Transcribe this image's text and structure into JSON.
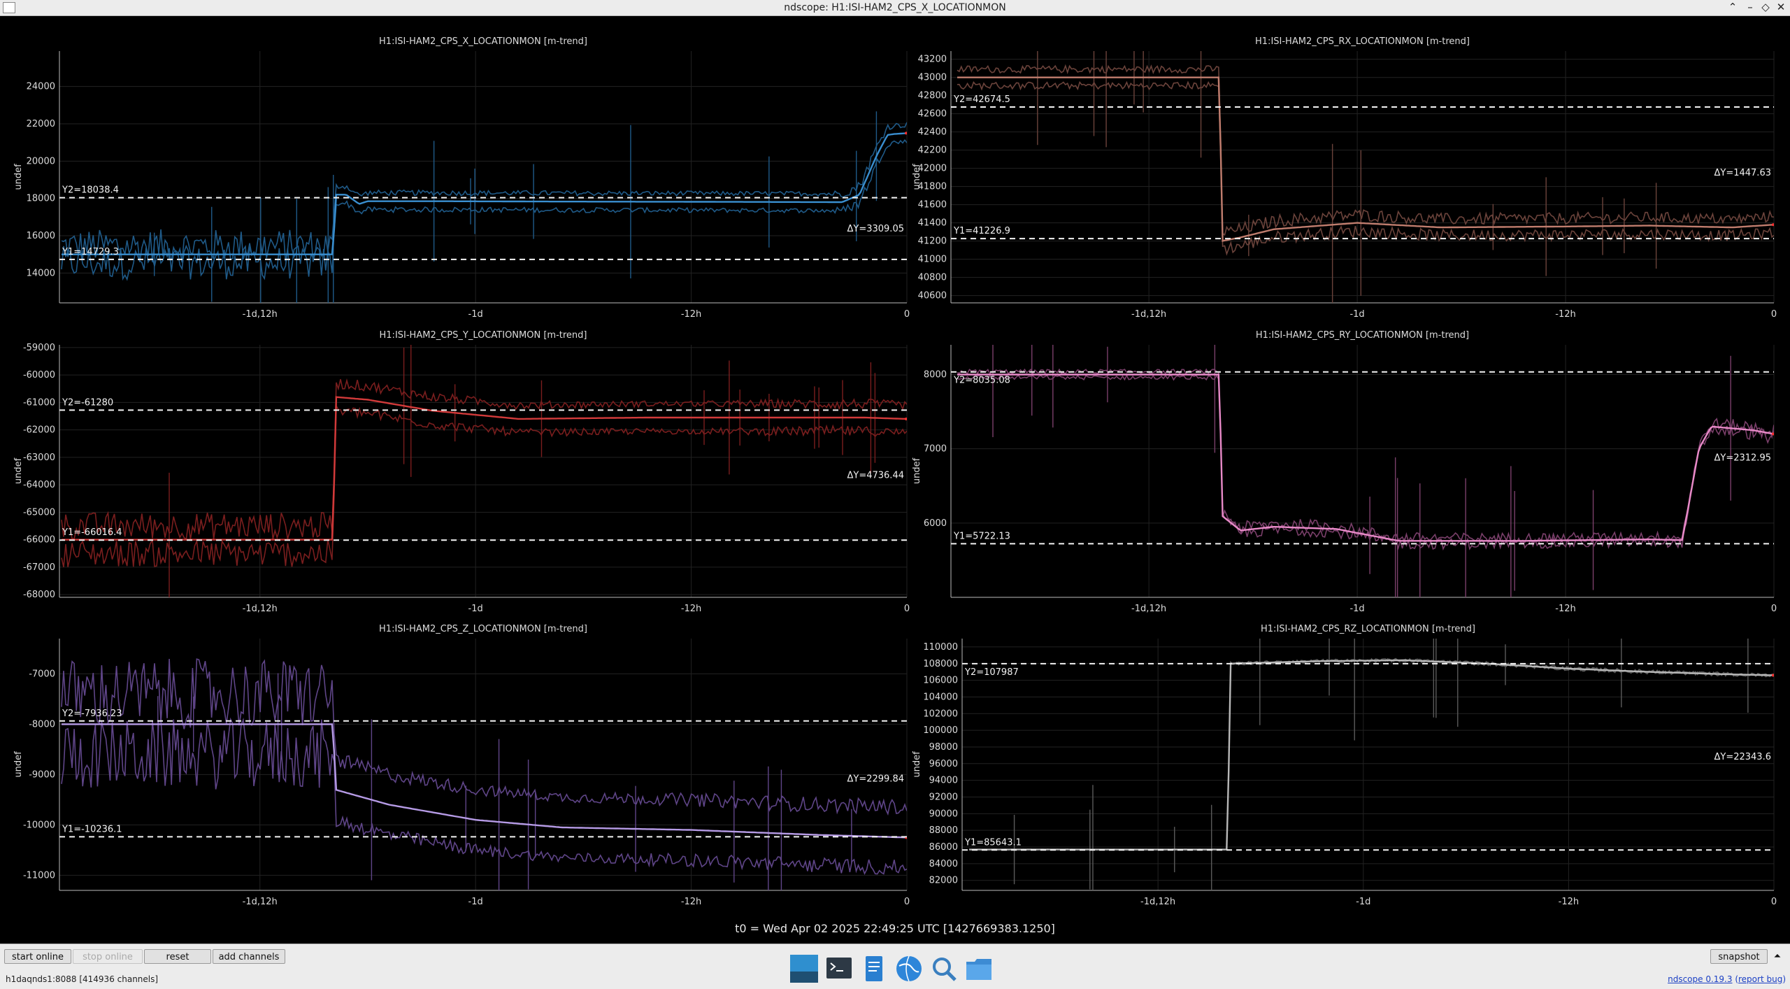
{
  "window": {
    "title": "ndscope: H1:ISI-HAM2_CPS_X_LOCATIONMON"
  },
  "t0": "t0 = Wed Apr 02 2025 22:49:25 UTC [1427669383.1250]",
  "x_tick_labels": [
    "-1d,12h",
    "-1d",
    "-12h",
    "0"
  ],
  "y_axis_label": "undef",
  "plots": [
    {
      "id": "x",
      "title": "H1:ISI-HAM2_CPS_X_LOCATIONMON [m-trend]",
      "color": "#3a8fd0",
      "dark_color": "#1f5a88",
      "y_ticks": [
        "14000",
        "16000",
        "18000",
        "20000",
        "22000",
        "24000"
      ],
      "y_tick_values": [
        14000,
        16000,
        18000,
        20000,
        22000,
        24000
      ],
      "ylim": [
        12400,
        25900
      ],
      "cursor_y2": "Y2=18038.4",
      "cursor_y2_value": 18038.4,
      "cursor_y1": "Y1=14729.3",
      "cursor_y1_value": 14729.3,
      "delta": "ΔY=3309.05",
      "mean": [
        [
          -1.95,
          15000
        ],
        [
          -1.33,
          15000
        ],
        [
          -1.325,
          18200
        ],
        [
          -1.3,
          18200
        ],
        [
          -1.27,
          17700
        ],
        [
          -1.25,
          17850
        ],
        [
          -1.1,
          17850
        ],
        [
          -0.8,
          17830
        ],
        [
          -0.5,
          17820
        ],
        [
          -0.15,
          17800
        ],
        [
          -0.11,
          18200
        ],
        [
          -0.07,
          20300
        ],
        [
          -0.045,
          21400
        ],
        [
          -0.03,
          21450
        ],
        [
          0,
          21500
        ]
      ],
      "band": 450,
      "spread": [
        [
          -1.95,
          900
        ],
        [
          -1.33,
          900
        ],
        [
          -1.325,
          150
        ],
        [
          -0.2,
          120
        ],
        [
          -0.1,
          300
        ],
        [
          -0.03,
          150
        ],
        [
          0,
          150
        ]
      ]
    },
    {
      "id": "rx",
      "title": "H1:ISI-HAM2_CPS_RX_LOCATIONMON [m-trend]",
      "color": "#c07d6e",
      "dark_color": "#6b433b",
      "y_ticks": [
        "40600",
        "40800",
        "41000",
        "41200",
        "41400",
        "41600",
        "41800",
        "42000",
        "42200",
        "42400",
        "42600",
        "42800",
        "43000",
        "43200"
      ],
      "y_tick_values": [
        40600,
        40800,
        41000,
        41200,
        41400,
        41600,
        41800,
        42000,
        42200,
        42400,
        42600,
        42800,
        43000,
        43200
      ],
      "ylim": [
        40520,
        43290
      ],
      "cursor_y2": "Y2=42674.5",
      "cursor_y2_value": 42674.5,
      "cursor_y1": "Y1=41226.9",
      "cursor_y1_value": 41226.9,
      "delta": "ΔY=1447.63",
      "mean": [
        [
          -1.95,
          43000
        ],
        [
          -1.33,
          43000
        ],
        [
          -1.325,
          41200
        ],
        [
          -1.28,
          41240
        ],
        [
          -1.2,
          41330
        ],
        [
          -1.0,
          41400
        ],
        [
          -0.8,
          41350
        ],
        [
          -0.5,
          41360
        ],
        [
          -0.3,
          41370
        ],
        [
          -0.1,
          41350
        ],
        [
          0,
          41380
        ]
      ],
      "band": 90,
      "spread": [
        [
          -1.95,
          40
        ],
        [
          -1.33,
          40
        ],
        [
          -1.325,
          70
        ],
        [
          -0.2,
          60
        ],
        [
          0,
          60
        ]
      ]
    },
    {
      "id": "y",
      "title": "H1:ISI-HAM2_CPS_Y_LOCATIONMON [m-trend]",
      "color": "#d23a3a",
      "dark_color": "#7a1e1e",
      "y_ticks": [
        "-68000",
        "-67000",
        "-66000",
        "-65000",
        "-64000",
        "-63000",
        "-62000",
        "-61000",
        "-60000",
        "-59000"
      ],
      "y_tick_values": [
        -68000,
        -67000,
        -66000,
        -65000,
        -64000,
        -63000,
        -62000,
        -61000,
        -60000,
        -59000
      ],
      "ylim": [
        -68100,
        -58900
      ],
      "cursor_y2": "Y2=-61280",
      "cursor_y2_value": -61280,
      "cursor_y1": "Y1=-66016.4",
      "cursor_y1_value": -66016.4,
      "delta": "ΔY=4736.44",
      "mean": [
        [
          -1.95,
          -66000
        ],
        [
          -1.33,
          -66000
        ],
        [
          -1.325,
          -60800
        ],
        [
          -1.25,
          -60900
        ],
        [
          -1.1,
          -61300
        ],
        [
          -0.9,
          -61600
        ],
        [
          -0.6,
          -61550
        ],
        [
          -0.3,
          -61550
        ],
        [
          -0.1,
          -61550
        ],
        [
          0,
          -61600
        ]
      ],
      "band": 500,
      "spread": [
        [
          -1.95,
          500
        ],
        [
          -1.33,
          500
        ],
        [
          -1.325,
          200
        ],
        [
          -0.5,
          100
        ],
        [
          -0.15,
          200
        ],
        [
          0,
          150
        ]
      ]
    },
    {
      "id": "ry",
      "title": "H1:ISI-HAM2_CPS_RY_LOCATIONMON [m-trend]",
      "color": "#e88ac8",
      "dark_color": "#7a3f6a",
      "y_ticks": [
        "6000",
        "7000",
        "8000"
      ],
      "y_tick_values": [
        6000,
        7000,
        8000
      ],
      "ylim": [
        5000,
        8400
      ],
      "cursor_y2": "Y2=8035.08",
      "cursor_y2_value": 8035.08,
      "cursor_y1": "Y1=5722.13",
      "cursor_y1_value": 5722.13,
      "delta": "ΔY=2312.95",
      "mean": [
        [
          -1.95,
          8000
        ],
        [
          -1.33,
          8000
        ],
        [
          -1.325,
          6100
        ],
        [
          -1.28,
          5900
        ],
        [
          -1.2,
          5950
        ],
        [
          -1.05,
          5920
        ],
        [
          -0.9,
          5760
        ],
        [
          -0.6,
          5760
        ],
        [
          -0.3,
          5780
        ],
        [
          -0.22,
          5770
        ],
        [
          -0.18,
          7000
        ],
        [
          -0.15,
          7300
        ],
        [
          -0.05,
          7250
        ],
        [
          0,
          7200
        ]
      ],
      "band": 40,
      "spread": [
        [
          -1.95,
          30
        ],
        [
          -1.33,
          30
        ],
        [
          -1.325,
          80
        ],
        [
          -0.25,
          60
        ],
        [
          0,
          100
        ]
      ]
    },
    {
      "id": "z",
      "title": "H1:ISI-HAM2_CPS_Z_LOCATIONMON [m-trend]",
      "color": "#b69be6",
      "dark_color": "#5f4588",
      "y_ticks": [
        "-11000",
        "-10000",
        "-9000",
        "-8000",
        "-7000"
      ],
      "y_tick_values": [
        -11000,
        -10000,
        -9000,
        -8000,
        -7000
      ],
      "ylim": [
        -11300,
        -6300
      ],
      "cursor_y2": "Y2=-7936.23",
      "cursor_y2_value": -7936.23,
      "cursor_y1": "Y1=-10236.1",
      "cursor_y1_value": -10236.1,
      "delta": "ΔY=2299.84",
      "mean": [
        [
          -1.95,
          -8000
        ],
        [
          -1.33,
          -8000
        ],
        [
          -1.325,
          -9300
        ],
        [
          -1.2,
          -9600
        ],
        [
          -1.0,
          -9900
        ],
        [
          -0.8,
          -10050
        ],
        [
          -0.5,
          -10100
        ],
        [
          -0.2,
          -10200
        ],
        [
          0,
          -10250
        ]
      ],
      "band": 600,
      "spread": [
        [
          -1.95,
          700
        ],
        [
          -1.33,
          700
        ],
        [
          -1.325,
          150
        ],
        [
          -0.8,
          100
        ],
        [
          -0.3,
          150
        ],
        [
          0,
          150
        ]
      ]
    },
    {
      "id": "rz",
      "title": "H1:ISI-HAM2_CPS_RZ_LOCATIONMON [m-trend]",
      "color": "#b8b8b8",
      "dark_color": "#5a5a5a",
      "y_ticks": [
        "82000",
        "84000",
        "86000",
        "88000",
        "90000",
        "92000",
        "94000",
        "96000",
        "98000",
        "100000",
        "102000",
        "104000",
        "106000",
        "108000",
        "110000"
      ],
      "y_tick_values": [
        82000,
        84000,
        86000,
        88000,
        90000,
        92000,
        94000,
        96000,
        98000,
        100000,
        102000,
        104000,
        106000,
        108000,
        110000
      ],
      "ylim": [
        80800,
        111000
      ],
      "cursor_y2": "Y2=107987",
      "cursor_y2_value": 107987,
      "cursor_y1": "Y1=85643.1",
      "cursor_y1_value": 85643.1,
      "delta": "ΔY=22343.6",
      "mean": [
        [
          -1.95,
          85700
        ],
        [
          -1.33,
          85700
        ],
        [
          -1.325,
          108000
        ],
        [
          -1.1,
          108300
        ],
        [
          -0.9,
          108400
        ],
        [
          -0.7,
          108000
        ],
        [
          -0.5,
          107400
        ],
        [
          -0.3,
          107000
        ],
        [
          -0.1,
          106700
        ],
        [
          0,
          106600
        ]
      ],
      "band": 0,
      "spread": [
        [
          -1.95,
          50
        ],
        [
          -1.33,
          50
        ],
        [
          -1.325,
          200
        ],
        [
          -0.3,
          250
        ],
        [
          0,
          200
        ]
      ]
    }
  ],
  "buttons": {
    "start_online": "start online",
    "stop_online": "stop online",
    "reset": "reset",
    "add_channels": "add channels",
    "snapshot": "snapshot"
  },
  "status": "h1daqnds1:8088  [414936 channels]",
  "version": {
    "label": "ndscope 0.19.3",
    "link": "report bug"
  },
  "taskbar": {
    "icons": [
      "show-desktop-icon",
      "terminal-icon",
      "text-editor-icon",
      "web-browser-icon",
      "search-icon",
      "file-manager-icon"
    ]
  }
}
